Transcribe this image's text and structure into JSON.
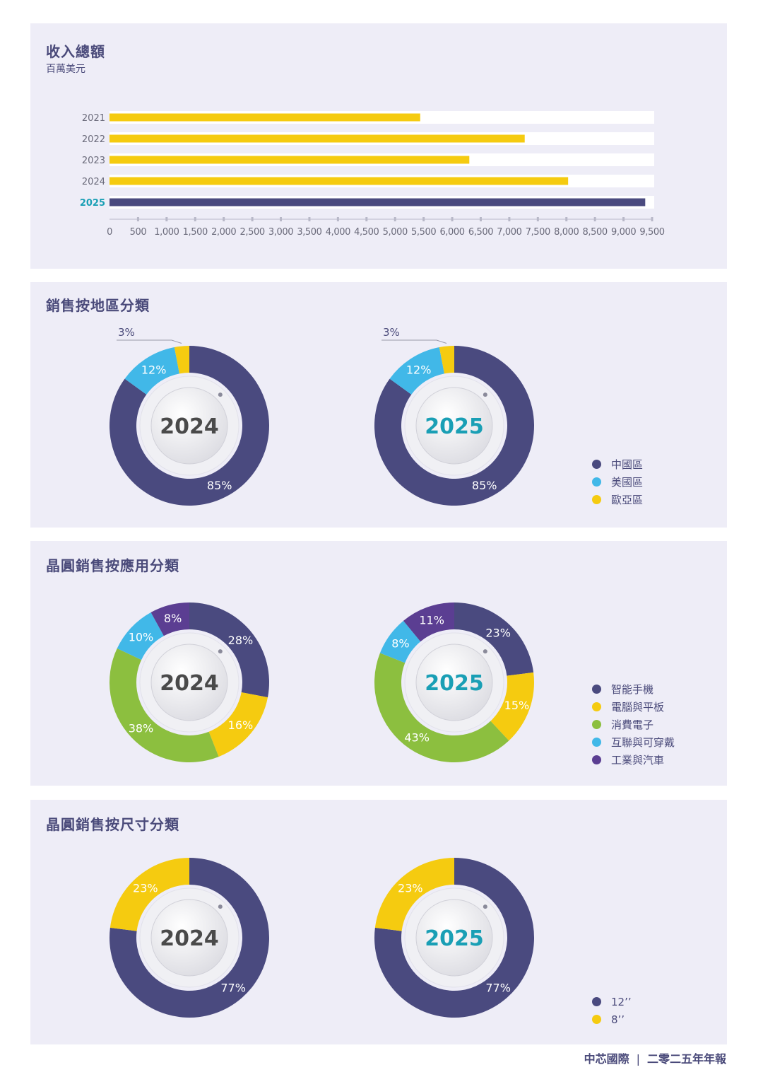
{
  "colors": {
    "navy": "#4a4a7f",
    "yellow": "#f5cb10",
    "cyan": "#41b8e8",
    "green": "#8cbf3f",
    "purple": "#5b3e92",
    "highlight": "#1a9fb5",
    "panel_bg": "#eeedf7"
  },
  "revenue": {
    "title": "收入總額",
    "subtitle": "百萬美元"
  },
  "region": {
    "title": "銷售按地區分類"
  },
  "application": {
    "title": "晶圓銷售按應用分類"
  },
  "size": {
    "title": "晶圓銷售按尺寸分類"
  },
  "footer": {
    "company": "中芯國際",
    "separator": "|",
    "report": "二零二五年年報"
  },
  "chart_data": [
    {
      "type": "bar",
      "orientation": "horizontal",
      "title": "收入總額",
      "subtitle": "百萬美元",
      "categories": [
        "2021",
        "2022",
        "2023",
        "2024",
        "2025"
      ],
      "values": [
        5440,
        7270,
        6300,
        8030,
        9380
      ],
      "highlight_category": "2025",
      "xlim": [
        0,
        9500
      ],
      "xticks": [
        "0",
        "500",
        "1,000",
        "1,500",
        "2,000",
        "2,500",
        "3,000",
        "3,500",
        "4,000",
        "4,500",
        "5,000",
        "5,500",
        "6,000",
        "6,500",
        "7,000",
        "7,500",
        "8,000",
        "8,500",
        "9,000",
        "9,500"
      ],
      "grid": false
    },
    {
      "type": "pie",
      "variant": "donut",
      "title": "銷售按地區分類",
      "charts": [
        {
          "center_label": "2024",
          "values": [
            85,
            12,
            3
          ],
          "labels": [
            "85%",
            "12%",
            "3%"
          ]
        },
        {
          "center_label": "2025",
          "values": [
            85,
            12,
            3
          ],
          "labels": [
            "85%",
            "12%",
            "3%"
          ]
        }
      ],
      "legend": [
        {
          "name": "中國區",
          "color": "#4a4a7f"
        },
        {
          "name": "美國區",
          "color": "#41b8e8"
        },
        {
          "name": "歐亞區",
          "color": "#f5cb10"
        }
      ],
      "legend_position": "right"
    },
    {
      "type": "pie",
      "variant": "donut",
      "title": "晶圓銷售按應用分類",
      "charts": [
        {
          "center_label": "2024",
          "values": [
            28,
            16,
            38,
            10,
            8
          ],
          "labels": [
            "28%",
            "16%",
            "38%",
            "10%",
            "8%"
          ]
        },
        {
          "center_label": "2025",
          "values": [
            23,
            15,
            43,
            8,
            11
          ],
          "labels": [
            "23%",
            "15%",
            "43%",
            "8%",
            "11%"
          ]
        }
      ],
      "legend": [
        {
          "name": "智能手機",
          "color": "#4a4a7f"
        },
        {
          "name": "電腦與平板",
          "color": "#f5cb10"
        },
        {
          "name": "消費電子",
          "color": "#8cbf3f"
        },
        {
          "name": "互聯與可穿戴",
          "color": "#41b8e8"
        },
        {
          "name": "工業與汽車",
          "color": "#5b3e92"
        }
      ],
      "legend_position": "right"
    },
    {
      "type": "pie",
      "variant": "donut",
      "title": "晶圓銷售按尺寸分類",
      "charts": [
        {
          "center_label": "2024",
          "values": [
            77,
            23
          ],
          "labels": [
            "77%",
            "23%"
          ]
        },
        {
          "center_label": "2025",
          "values": [
            77,
            23
          ],
          "labels": [
            "77%",
            "23%"
          ]
        }
      ],
      "legend": [
        {
          "name": "12’’",
          "color": "#4a4a7f"
        },
        {
          "name": "8’’",
          "color": "#f5cb10"
        }
      ],
      "legend_position": "right"
    }
  ]
}
